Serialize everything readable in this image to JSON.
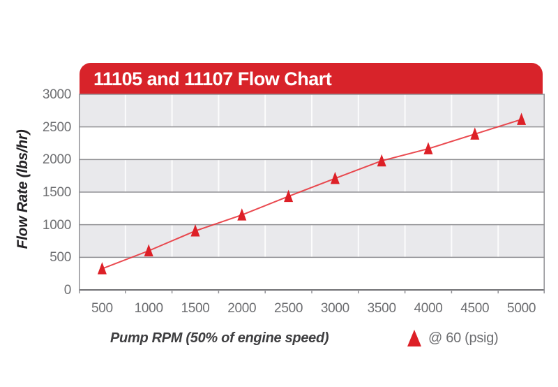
{
  "header": {
    "title": "11105 and 11107 Flow Chart"
  },
  "chart_data": {
    "type": "line",
    "title": "11105 and 11107 Flow Chart",
    "xlabel": "Pump RPM (50% of engine speed)",
    "ylabel": "Flow Rate (lbs/hr)",
    "categories": [
      500,
      1000,
      1500,
      2000,
      2500,
      3000,
      3500,
      4000,
      4500,
      5000
    ],
    "series": [
      {
        "name": "@ 60 (psig)",
        "marker": "triangle-icon",
        "values": [
          325,
          600,
          905,
          1150,
          1435,
          1710,
          1980,
          2165,
          2390,
          2615
        ]
      }
    ],
    "xlim": [
      250,
      5250
    ],
    "ylim": [
      0,
      3000
    ],
    "y_ticks": [
      0,
      500,
      1000,
      1500,
      2000,
      2500,
      3000
    ],
    "grid": "horizontal major gridlines; alternating gray/white 500-unit bands; faint white column separators",
    "legend_position": "bottom-right"
  },
  "colors": {
    "banner_red": "#D8232A",
    "line_red": "#E8353C",
    "marker_red": "#DD2027",
    "band_gray": "#E9E9EC",
    "grid_gray": "#919195",
    "axis_gray": "#707074",
    "tick_text": "#6D6E71",
    "title_text": "#3E3E40",
    "ytitle_text": "#232124",
    "background": "#FFFFFF"
  }
}
